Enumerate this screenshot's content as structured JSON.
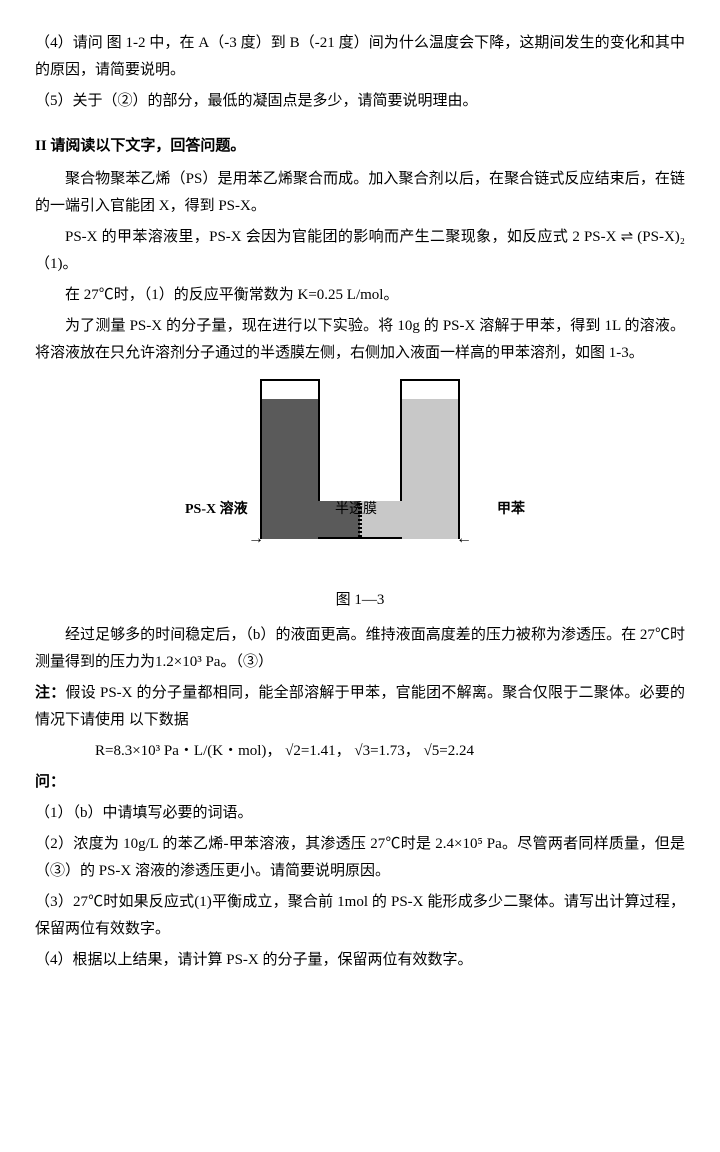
{
  "q4": "（4）请问 图 1-2 中，在 A（-3 度）到 B（-21 度）间为什么温度会下降，这期间发生的变化和其中的原因，请简要说明。",
  "q5": "（5）关于（②）的部分，最低的凝固点是多少，请简要说明理由。",
  "section2_title": "II 请阅读以下文字，回答问题。",
  "p1": "聚合物聚苯乙烯（PS）是用苯乙烯聚合而成。加入聚合剂以后，在聚合链式反应结束后，在链的一端引入官能团 X，得到 PS-X。",
  "p2": "PS-X 的甲苯溶液里，PS-X 会因为官能团的影响而产生二聚现象，如反应式 2 PS-X ⇌ (PS-X)₂（1)。",
  "p3": "在 27℃时，（1）的反应平衡常数为 K=0.25 L/mol。",
  "p4": "为了测量 PS-X 的分子量，现在进行以下实验。将 10g 的 PS-X 溶解于甲苯，得到 1L 的溶液。将溶液放在只允许溶剂分子通过的半透膜左侧，右侧加入液面一样高的甲苯溶剂，如图 1-3。",
  "diagram": {
    "left_label": "PS-X 溶液",
    "right_label": "甲苯",
    "membrane_label": "半透膜",
    "caption": "图 1—3",
    "left_color": "#5a5a5a",
    "right_color": "#c8c8c8",
    "arrow_left": "→",
    "arrow_right": "←"
  },
  "p5": "经过足够多的时间稳定后，（b）的液面更高。维持液面高度差的压力被称为渗透压。在 27℃时测量得到的压力为1.2×10³ Pa。（③）",
  "note": "注：",
  "note_text": "假设 PS-X 的分子量都相同，能全部溶解于甲苯，官能团不解离。聚合仅限于二聚体。必要的情况下请使用 以下数据",
  "formula": "R=8.3×10³  Pa・L/(K・mol)，  √2=1.41，  √3=1.73，  √5=2.24",
  "ask": "问：",
  "qq1": "（1）（b）中请填写必要的词语。",
  "qq2": "（2）浓度为 10g/L 的苯乙烯-甲苯溶液，其渗透压 27℃时是 2.4×10⁵ Pa。尽管两者同样质量，但是（③）的 PS-X 溶液的渗透压更小。请简要说明原因。",
  "qq3": "（3）27℃时如果反应式(1)平衡成立，聚合前 1mol 的 PS-X 能形成多少二聚体。请写出计算过程，保留两位有效数字。",
  "qq4": "（4）根据以上结果，请计算 PS-X 的分子量，保留两位有效数字。"
}
